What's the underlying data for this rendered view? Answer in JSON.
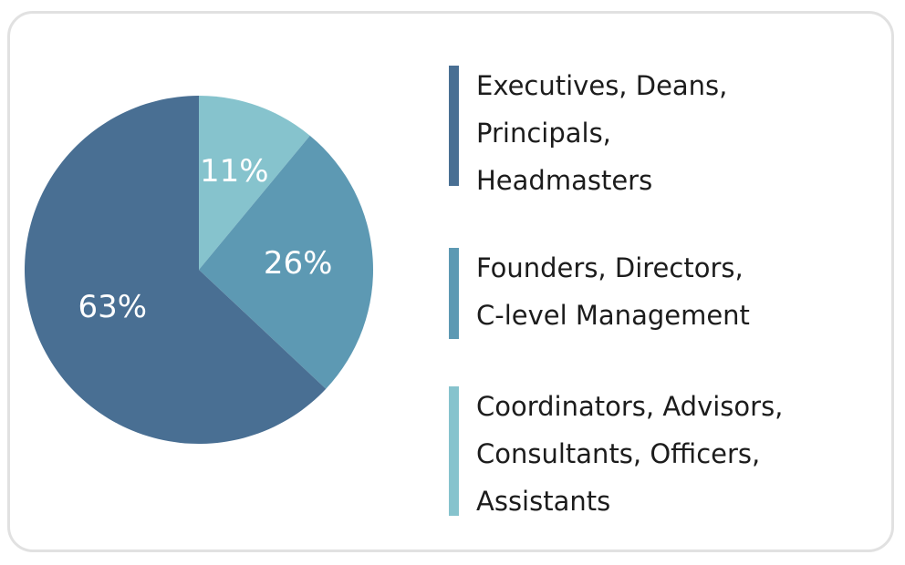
{
  "chart_data": {
    "type": "pie",
    "slices": [
      {
        "label": "Coordinators, Advisors, Consultants, Officers, Assistants",
        "value": 11,
        "display": "11%",
        "color": "#86c3cd"
      },
      {
        "label": "Founders, Directors, C-level Management",
        "value": 26,
        "display": "26%",
        "color": "#5d99b3"
      },
      {
        "label": "Executives, Deans, Principals, Headmasters",
        "value": 63,
        "display": "63%",
        "color": "#496f93"
      }
    ],
    "legend_placement": "right",
    "legend": [
      {
        "lines": [
          "Executives, Deans,",
          "Principals,",
          "Headmasters"
        ],
        "color": "#496f93"
      },
      {
        "lines": [
          "Founders, Directors,",
          "C-level Management"
        ],
        "color": "#5d99b3"
      },
      {
        "lines": [
          "Coordinators, Advisors,",
          "Consultants, Officers,",
          "Assistants"
        ],
        "color": "#86c3cd"
      }
    ]
  }
}
